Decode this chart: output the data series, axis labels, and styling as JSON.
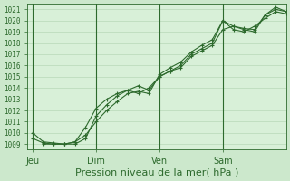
{
  "background_color": "#cce8cc",
  "plot_bg_color": "#d8f0d8",
  "grid_color": "#b8d8b8",
  "minor_grid_color": "#ccddcc",
  "line_color": "#2d6a2d",
  "marker_color": "#2d6a2d",
  "ylabel_ticks": [
    1009,
    1010,
    1011,
    1012,
    1013,
    1014,
    1015,
    1016,
    1017,
    1018,
    1019,
    1020,
    1021
  ],
  "xlabel": "Pression niveau de la mer( hPa )",
  "xlabel_fontsize": 8,
  "xtick_labels": [
    "Jeu",
    "Dim",
    "Ven",
    "Sam"
  ],
  "xtick_positions": [
    0,
    24,
    48,
    72
  ],
  "vline_positions": [
    0,
    24,
    48,
    72
  ],
  "ylim": [
    1008.5,
    1021.5
  ],
  "xlim": [
    -2,
    96
  ],
  "line1_x": [
    0,
    4,
    8,
    12,
    16,
    20,
    24,
    28,
    32,
    36,
    40,
    44,
    48,
    52,
    56,
    60,
    64,
    68,
    72,
    76,
    80,
    84,
    88,
    92,
    96
  ],
  "line1_y": [
    1010.0,
    1009.2,
    1009.1,
    1009.0,
    1009.2,
    1009.8,
    1011.0,
    1012.0,
    1012.8,
    1013.5,
    1013.7,
    1013.5,
    1015.2,
    1015.8,
    1016.3,
    1017.2,
    1017.8,
    1018.3,
    1020.0,
    1019.5,
    1019.3,
    1019.2,
    1020.5,
    1021.0,
    1020.8
  ],
  "line2_x": [
    0,
    4,
    8,
    12,
    16,
    20,
    24,
    28,
    32,
    36,
    40,
    44,
    48,
    52,
    56,
    60,
    64,
    68,
    72,
    76,
    80,
    84,
    88,
    92,
    96
  ],
  "line2_y": [
    1009.5,
    1009.1,
    1009.0,
    1009.0,
    1009.0,
    1009.5,
    1011.5,
    1012.5,
    1013.3,
    1013.8,
    1013.5,
    1014.0,
    1015.0,
    1015.5,
    1016.0,
    1017.0,
    1017.5,
    1018.0,
    1020.0,
    1019.2,
    1019.0,
    1019.5,
    1020.2,
    1020.8,
    1020.6
  ],
  "line3_x": [
    4,
    8,
    12,
    16,
    20,
    24,
    28,
    32,
    36,
    40,
    44,
    48,
    52,
    56,
    60,
    64,
    68,
    72,
    76,
    80,
    84,
    88,
    92,
    96
  ],
  "line3_y": [
    1009.0,
    1009.0,
    1009.0,
    1009.2,
    1010.5,
    1012.2,
    1013.0,
    1013.5,
    1013.8,
    1014.2,
    1013.8,
    1015.0,
    1015.5,
    1015.8,
    1016.8,
    1017.3,
    1017.8,
    1019.2,
    1019.5,
    1019.2,
    1019.0,
    1020.5,
    1021.2,
    1020.8
  ]
}
